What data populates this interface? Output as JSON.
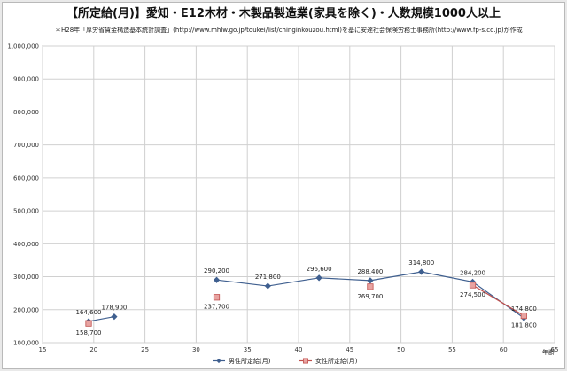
{
  "chart_data": {
    "type": "line",
    "title": "【所定給(月)】愛知・E12木材・木製品製造業(家具を除く)・人数規模1000人以上",
    "subtitle": "＊H28年「厚労省賃金構造基本統計調査」(http://www.mhlw.go.jp/toukei/list/chinginkouzou.html)を基に安達社会保険労務士事務所(http://www.fp-s.co.jp)が作成",
    "xlabel": "年齢",
    "ylabel": "",
    "xlim": [
      15,
      65
    ],
    "ylim": [
      100000,
      1000000
    ],
    "x_ticks": [
      "15",
      "20",
      "25",
      "30",
      "35",
      "40",
      "45",
      "50",
      "55",
      "60",
      "65"
    ],
    "y_ticks": [
      "100,000",
      "200,000",
      "300,000",
      "400,000",
      "500,000",
      "600,000",
      "700,000",
      "800,000",
      "900,000",
      "1,000,000"
    ],
    "grid": true,
    "legend_position": "bottom",
    "series": [
      {
        "name": "男性所定給(月)",
        "color": "#3f5f8f",
        "marker": "diamond",
        "segments": [
          [
            {
              "x": 19.5,
              "y": 164600,
              "label": "164,600"
            },
            {
              "x": 22,
              "y": 178900,
              "label": "178,900"
            }
          ],
          [
            {
              "x": 32,
              "y": 290200,
              "label": "290,200"
            },
            {
              "x": 37,
              "y": 271800,
              "label": "271,800"
            },
            {
              "x": 42,
              "y": 296600,
              "label": "296,600"
            },
            {
              "x": 47,
              "y": 288400,
              "label": "288,400"
            },
            {
              "x": 52,
              "y": 314800,
              "label": "314,800"
            },
            {
              "x": 57,
              "y": 284200,
              "label": "284,200"
            },
            {
              "x": 62,
              "y": 174800,
              "label": "174,800"
            }
          ]
        ]
      },
      {
        "name": "女性所定給(月)",
        "color": "#c0504d",
        "marker": "square",
        "segments": [
          [
            {
              "x": 19.5,
              "y": 158700,
              "label": "158,700"
            }
          ],
          [
            {
              "x": 32,
              "y": 237700,
              "label": "237,700"
            }
          ],
          [
            {
              "x": 47,
              "y": 269700,
              "label": "269,700"
            }
          ],
          [
            {
              "x": 57,
              "y": 274500,
              "label": "274,500"
            },
            {
              "x": 62,
              "y": 181800,
              "label": "181,800"
            }
          ]
        ]
      }
    ]
  }
}
